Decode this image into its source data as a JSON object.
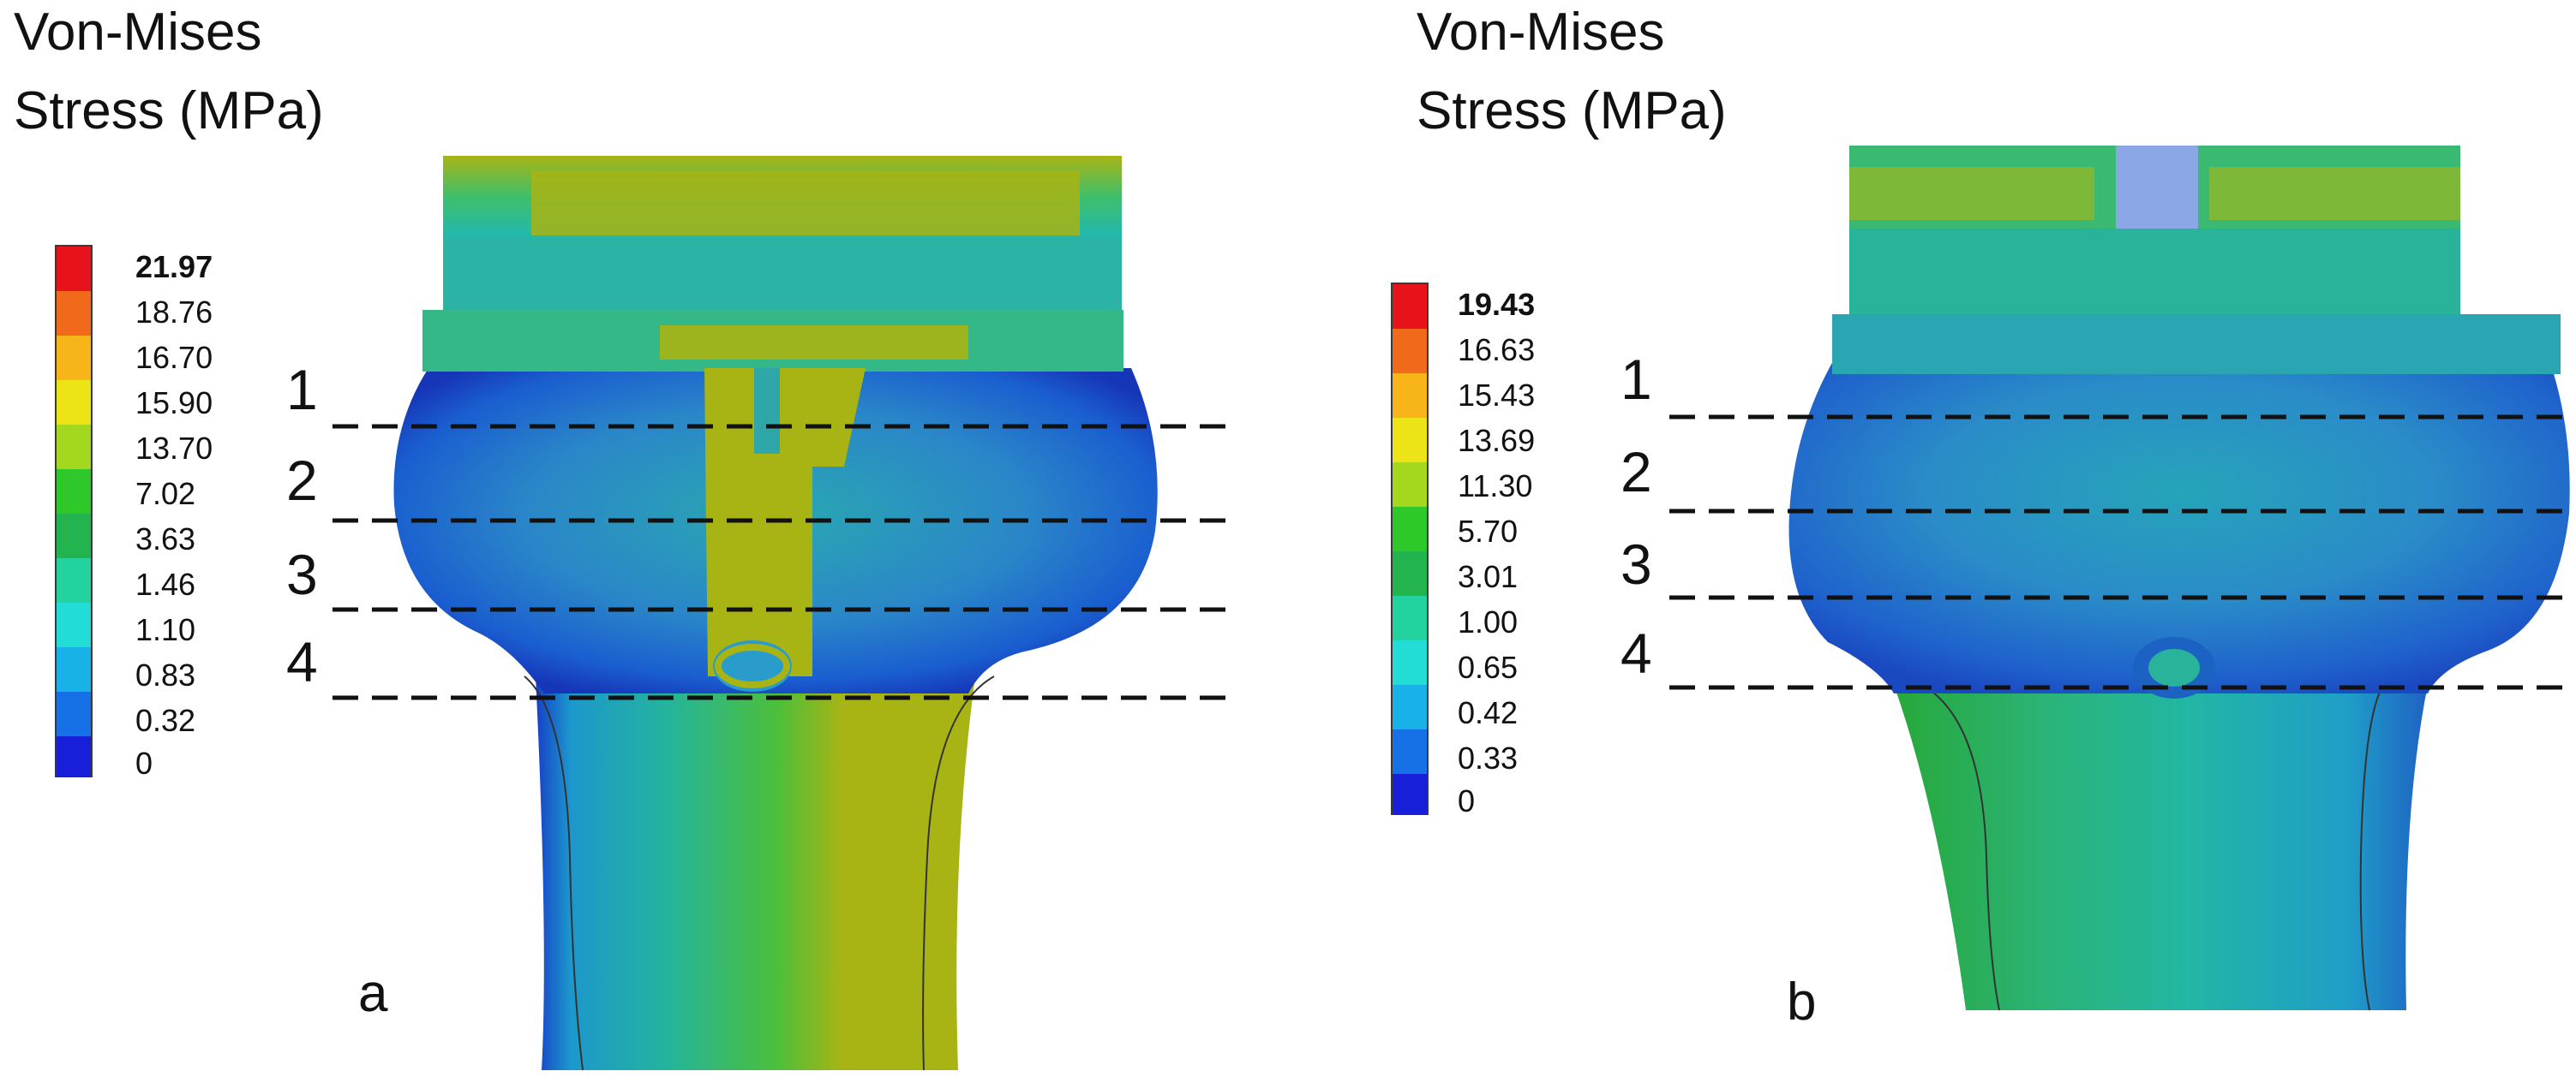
{
  "panels": [
    {
      "id": "a",
      "title_line1": "Von-Mises",
      "title_line2": "Stress (MPa)",
      "legend_values": [
        "21.97",
        "18.76",
        "16.70",
        "15.90",
        "13.70",
        "7.02",
        "3.63",
        "1.46",
        "1.10",
        "0.83",
        "0.32",
        "0"
      ],
      "sections": [
        "1",
        "2",
        "3",
        "4"
      ],
      "letter": "a"
    },
    {
      "id": "b",
      "title_line1": "Von-Mises",
      "title_line2": "Stress (MPa)",
      "legend_values": [
        "19.43",
        "16.63",
        "15.43",
        "13.69",
        "11.30",
        "5.70",
        "3.01",
        "1.00",
        "0.65",
        "0.42",
        "0.33",
        "0"
      ],
      "sections": [
        "1",
        "2",
        "3",
        "4"
      ],
      "letter": "b"
    }
  ],
  "legend_colors": [
    "#e8121a",
    "#f16a1c",
    "#f7b519",
    "#ece417",
    "#a3d81f",
    "#2ec82a",
    "#23b450",
    "#22d3a0",
    "#22dcd6",
    "#18b2e8",
    "#1671e6",
    "#1720d8"
  ]
}
